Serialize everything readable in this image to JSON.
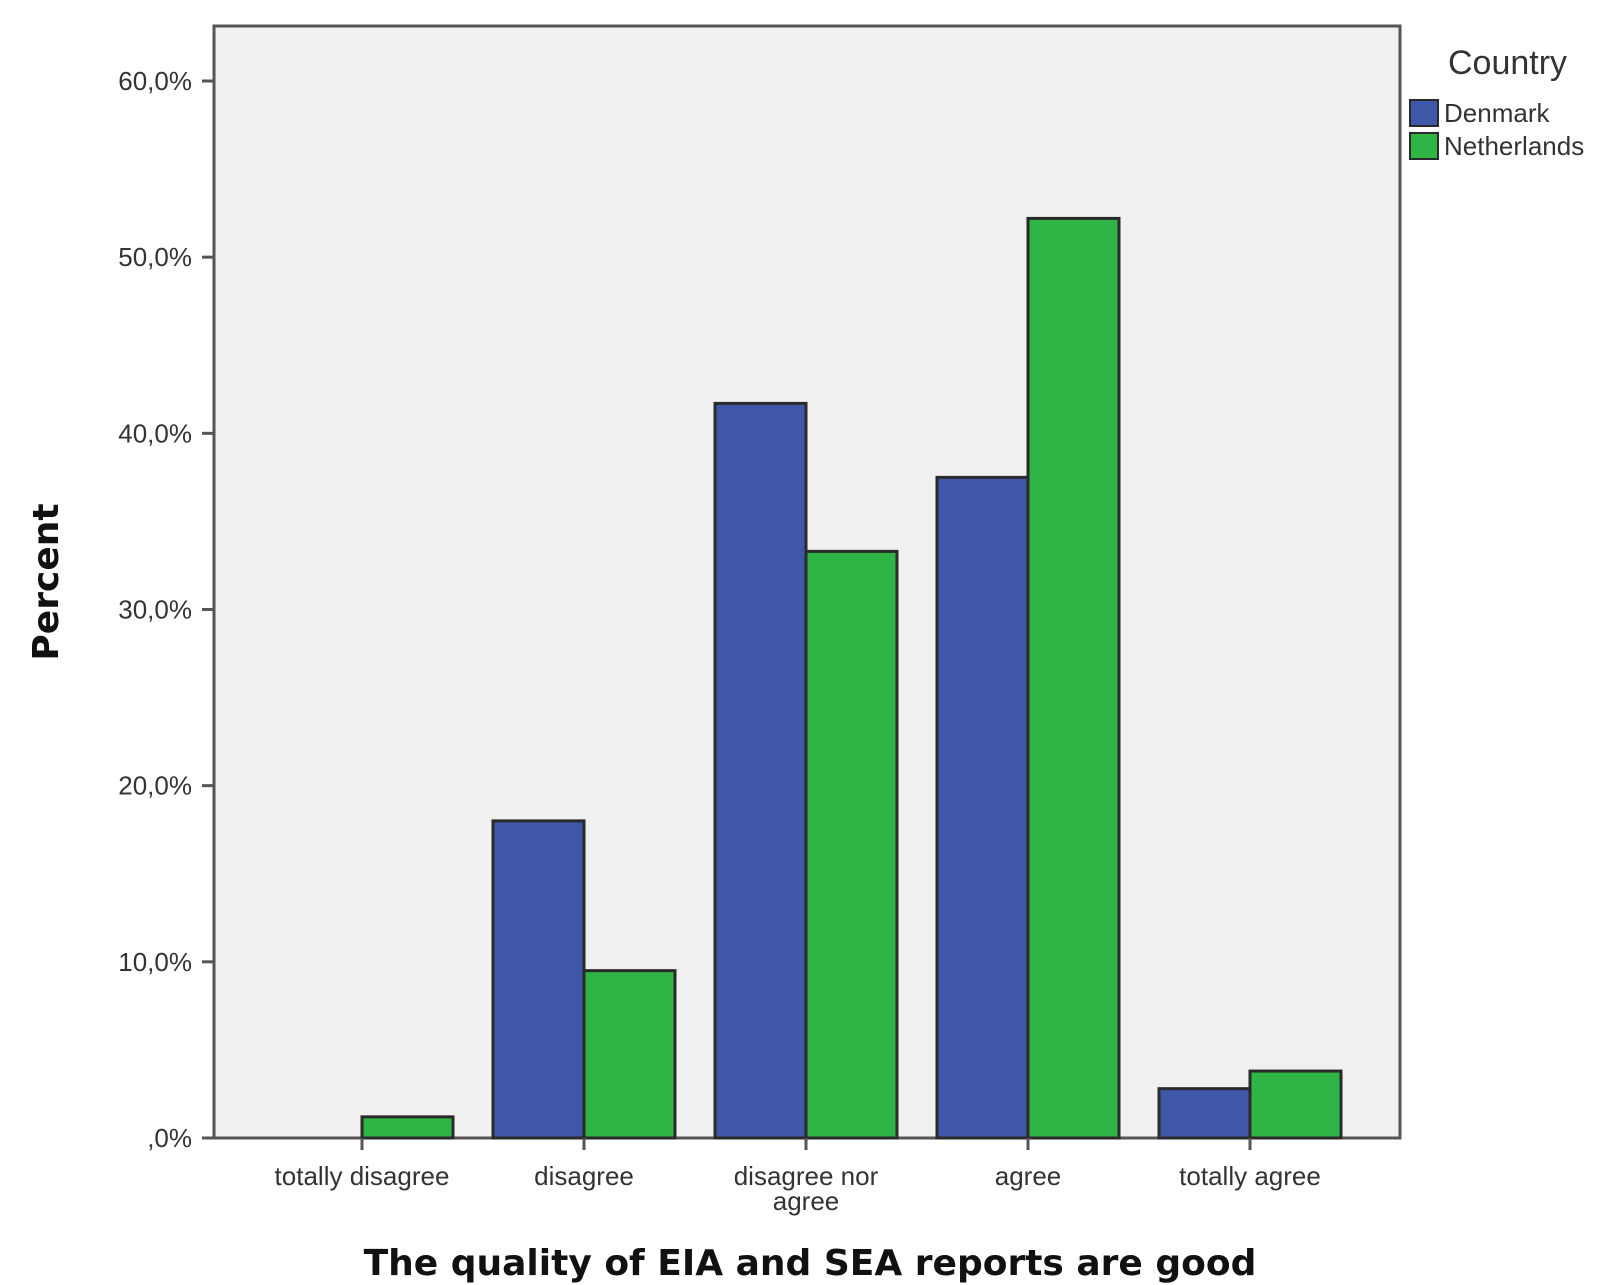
{
  "chart_data": {
    "type": "bar",
    "categories": [
      "totally disagree",
      "disagree",
      "disagree nor agree",
      "agree",
      "totally agree"
    ],
    "category_lines": [
      [
        "totally disagree"
      ],
      [
        "disagree"
      ],
      [
        "disagree nor",
        "agree"
      ],
      [
        "agree"
      ],
      [
        "totally agree"
      ]
    ],
    "series": [
      {
        "name": "Denmark",
        "values": [
          0.0,
          18.0,
          41.7,
          37.5,
          2.8
        ],
        "color": "#3f57a9"
      },
      {
        "name": "Netherlands",
        "values": [
          1.2,
          9.5,
          33.3,
          52.2,
          3.8
        ],
        "color": "#2fb545"
      }
    ],
    "title": "",
    "xlabel": "The quality of EIA and SEA reports are good",
    "ylabel": "Percent",
    "ylim": [
      0,
      60
    ],
    "yticks": [
      0,
      10,
      20,
      30,
      40,
      50,
      60
    ],
    "ytick_labels": [
      ",0%",
      "10,0%",
      "20,0%",
      "30,0%",
      "40,0%",
      "50,0%",
      "60,0%"
    ],
    "legend_title": "Country",
    "legend_position": "top-right",
    "plot_background": "#f0f0f0",
    "grid": false
  }
}
